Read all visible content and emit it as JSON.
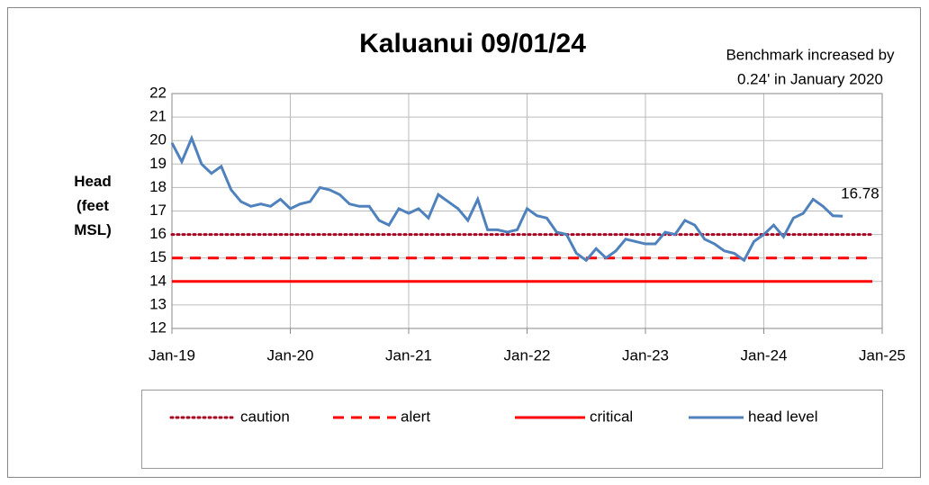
{
  "chart_data": {
    "type": "line",
    "title": "Kaluanui 09/01/24",
    "annotation": [
      "Benchmark increased by",
      "0.24' in January 2020"
    ],
    "ylabel": "Head (feet MSL)",
    "xlim": [
      "2019-01",
      "2025-01"
    ],
    "xticks": [
      {
        "value": "2019-01",
        "label": "Jan-19"
      },
      {
        "value": "2020-01",
        "label": "Jan-20"
      },
      {
        "value": "2021-01",
        "label": "Jan-21"
      },
      {
        "value": "2022-01",
        "label": "Jan-22"
      },
      {
        "value": "2023-01",
        "label": "Jan-23"
      },
      {
        "value": "2024-01",
        "label": "Jan-24"
      },
      {
        "value": "2025-01",
        "label": "Jan-25"
      }
    ],
    "ylim": [
      12,
      22
    ],
    "yticks": [
      12,
      13,
      14,
      15,
      16,
      17,
      18,
      19,
      20,
      21,
      22
    ],
    "grid": true,
    "legend": "bottom",
    "series": [
      {
        "name": "caution",
        "color": "#a50021",
        "style": "dotted",
        "x": [
          "2019-01",
          "2024-12"
        ],
        "values": [
          16,
          16
        ]
      },
      {
        "name": "alert",
        "color": "#ff0000",
        "style": "dashed",
        "x": [
          "2019-01",
          "2024-12"
        ],
        "values": [
          15,
          15
        ]
      },
      {
        "name": "critical",
        "color": "#ff0000",
        "style": "solid",
        "x": [
          "2019-01",
          "2024-12"
        ],
        "values": [
          14,
          14
        ]
      },
      {
        "name": "head level",
        "color": "#4f81bd",
        "style": "solid",
        "x": [
          "2019-01",
          "2019-02",
          "2019-03",
          "2019-04",
          "2019-05",
          "2019-06",
          "2019-07",
          "2019-08",
          "2019-09",
          "2019-10",
          "2019-11",
          "2019-12",
          "2020-01",
          "2020-02",
          "2020-03",
          "2020-04",
          "2020-05",
          "2020-06",
          "2020-07",
          "2020-08",
          "2020-09",
          "2020-10",
          "2020-11",
          "2020-12",
          "2021-01",
          "2021-02",
          "2021-03",
          "2021-04",
          "2021-05",
          "2021-06",
          "2021-07",
          "2021-08",
          "2021-09",
          "2021-10",
          "2021-11",
          "2021-12",
          "2022-01",
          "2022-02",
          "2022-03",
          "2022-04",
          "2022-05",
          "2022-06",
          "2022-07",
          "2022-08",
          "2022-09",
          "2022-10",
          "2022-11",
          "2022-12",
          "2023-01",
          "2023-02",
          "2023-03",
          "2023-04",
          "2023-05",
          "2023-06",
          "2023-07",
          "2023-08",
          "2023-09",
          "2023-10",
          "2023-11",
          "2023-12",
          "2024-01",
          "2024-02",
          "2024-03",
          "2024-04",
          "2024-05",
          "2024-06",
          "2024-07",
          "2024-08",
          "2024-09"
        ],
        "values": [
          19.9,
          19.1,
          20.1,
          19.0,
          18.6,
          18.9,
          17.9,
          17.4,
          17.2,
          17.3,
          17.2,
          17.5,
          17.1,
          17.3,
          17.4,
          18.0,
          17.9,
          17.7,
          17.3,
          17.2,
          17.2,
          16.6,
          16.4,
          17.1,
          16.9,
          17.1,
          16.7,
          17.7,
          17.4,
          17.1,
          16.6,
          17.5,
          16.2,
          16.2,
          16.1,
          16.2,
          17.1,
          16.8,
          16.7,
          16.1,
          16.0,
          15.2,
          14.9,
          15.4,
          15.0,
          15.3,
          15.8,
          15.7,
          15.6,
          15.6,
          16.1,
          16.0,
          16.6,
          16.4,
          15.8,
          15.6,
          15.3,
          15.2,
          14.9,
          15.7,
          16.0,
          16.4,
          15.9,
          16.7,
          16.9,
          17.5,
          17.2,
          16.8,
          16.78
        ]
      }
    ]
  }
}
